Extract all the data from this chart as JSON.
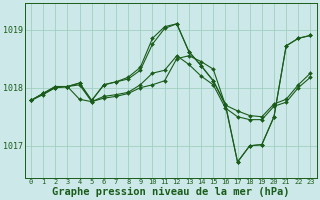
{
  "background_color": "#cce8e8",
  "grid_color": "#99ccbb",
  "line_color": "#1a5c1a",
  "xlabel": "Graphe pression niveau de la mer (hPa)",
  "xlabel_fontsize": 7.5,
  "yticks": [
    1017,
    1018,
    1019
  ],
  "ylim": [
    1016.45,
    1019.45
  ],
  "xlim": [
    -0.5,
    23.5
  ],
  "xticks": [
    0,
    1,
    2,
    3,
    4,
    5,
    6,
    7,
    8,
    9,
    10,
    11,
    12,
    13,
    14,
    15,
    16,
    17,
    18,
    19,
    20,
    21,
    22,
    23
  ],
  "series": {
    "s1": [
      1017.78,
      1017.9,
      1018.0,
      1018.02,
      1018.05,
      1017.76,
      1017.82,
      1017.85,
      1017.9,
      1018.0,
      1018.05,
      1018.12,
      1018.5,
      1018.55,
      1018.45,
      1018.32,
      1017.7,
      1017.6,
      1017.52,
      1017.5,
      1017.72,
      1017.8,
      1018.05,
      1018.25
    ],
    "s2": [
      1017.78,
      1017.88,
      1018.0,
      1018.02,
      1017.8,
      1017.76,
      1017.85,
      1017.88,
      1017.92,
      1018.05,
      1018.25,
      1018.3,
      1018.55,
      1018.4,
      1018.2,
      1018.05,
      1017.65,
      1017.5,
      1017.45,
      1017.45,
      1017.68,
      1017.75,
      1018.0,
      1018.18
    ],
    "s3": [
      1017.78,
      1017.9,
      1018.02,
      1018.02,
      1018.08,
      1017.78,
      1018.05,
      1018.1,
      1018.15,
      1018.3,
      1018.75,
      1019.02,
      1019.1,
      1018.62,
      1018.38,
      1018.12,
      1017.7,
      1016.72,
      1017.0,
      1017.02,
      1017.5,
      1018.72,
      1018.85,
      1018.9
    ],
    "s4": [
      1017.78,
      1017.9,
      1018.02,
      1018.02,
      1018.08,
      1017.78,
      1018.05,
      1018.1,
      1018.18,
      1018.35,
      1018.85,
      1019.05,
      1019.1,
      1018.62,
      1018.38,
      1018.12,
      1017.72,
      1016.72,
      1017.0,
      1017.02,
      1017.5,
      1018.72,
      1018.85,
      1018.9
    ]
  }
}
